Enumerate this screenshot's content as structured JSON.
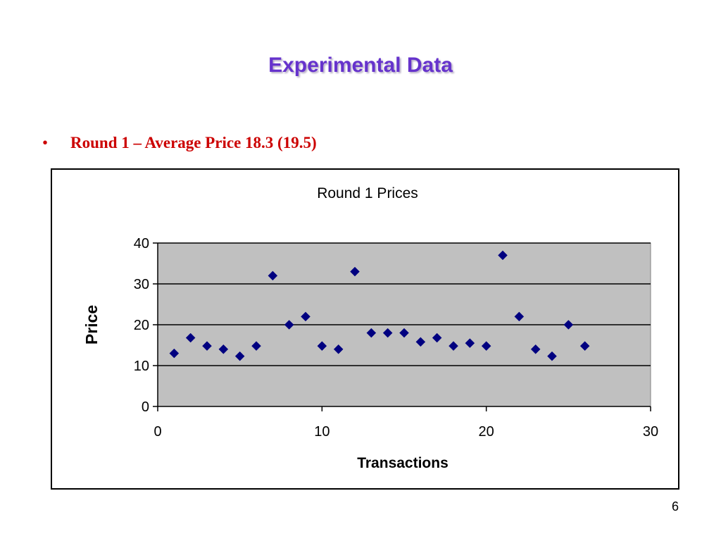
{
  "slide": {
    "title": "Experimental Data",
    "bullet_mark": "•",
    "bullet_text": "Round 1 – Average Price 18.3 (19.5)",
    "page_number": "6",
    "title_color": "#6633cc",
    "bullet_color": "#cc0000"
  },
  "chart_data": {
    "type": "scatter",
    "title": "Round 1 Prices",
    "xlabel": "Transactions",
    "ylabel": "Price",
    "xlim": [
      0,
      30
    ],
    "ylim": [
      0,
      40
    ],
    "x_ticks": [
      0,
      10,
      20,
      30
    ],
    "y_ticks": [
      0,
      10,
      20,
      30,
      40
    ],
    "grid": "horizontal",
    "plot_background": "#c0c0c0",
    "marker": "diamond",
    "marker_color": "#000080",
    "legend": "none",
    "x": [
      1,
      2,
      3,
      4,
      5,
      6,
      7,
      8,
      9,
      10,
      11,
      12,
      13,
      14,
      15,
      16,
      17,
      18,
      19,
      20,
      21,
      22,
      23,
      24,
      25,
      26
    ],
    "y": [
      13,
      16.8,
      14.8,
      14,
      12.3,
      14.8,
      32,
      20,
      22,
      14.8,
      14,
      33,
      18,
      18,
      18,
      15.8,
      16.8,
      14.8,
      15.5,
      14.8,
      37,
      22,
      14,
      12.3,
      20,
      14.8
    ]
  }
}
